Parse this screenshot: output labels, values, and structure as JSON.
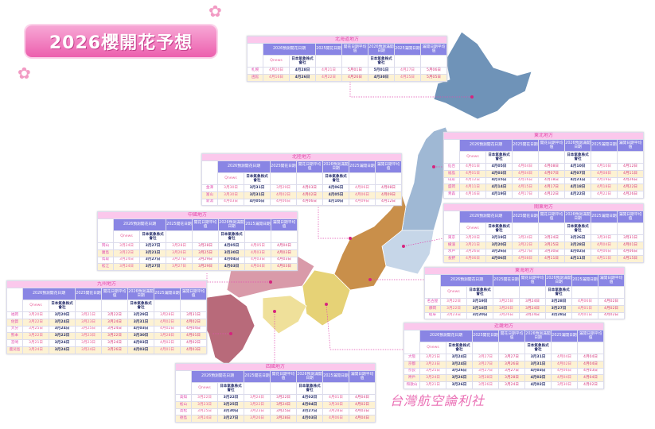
{
  "title": "2026櫻開花予想",
  "watermark": "台灣航空論利社",
  "colors": {
    "header": "#8985e4",
    "title_bar": "#fbc8ec",
    "accent_pink": "#e24aa8",
    "alt_row": "#fdf2d3"
  },
  "headers": [
    "2026預測開花日期",
    "2025開花日期",
    "開花日期平均值",
    "2026預測滿開日期",
    "2025滿開日期",
    "滿開日期平均值"
  ],
  "subheaders": {
    "qnews": "Qnews",
    "jwa": "日本氣象株式會社"
  },
  "regions": [
    {
      "name": "北海道地方",
      "rows": [
        {
          "city": "札幌",
          "v": [
            "4月20日",
            "4月28日",
            "4月21日",
            "5月01日",
            "5月01日",
            "4月27日",
            "5月06日"
          ]
        },
        {
          "city": "函館",
          "v": [
            "4月16日",
            "4月26日",
            "4月22日",
            "4月26日",
            "4月30日",
            "4月25日",
            "5月05日"
          ]
        }
      ]
    },
    {
      "name": "東北地方",
      "rows": [
        {
          "city": "仙台",
          "v": [
            "4月01日",
            "4月05日",
            "4月04日",
            "4月08日",
            "4月10日",
            "4月10日",
            "4月12日"
          ]
        },
        {
          "city": "福島",
          "v": [
            "4月01日",
            "4月03日",
            "4月04日",
            "4月07日",
            "4月07日",
            "4月08日",
            "4月11日"
          ]
        },
        {
          "city": "山形",
          "v": [
            "4月12日",
            "4月15日",
            "4月16日",
            "4月18日",
            "4月21日",
            "4月19日",
            "4月26日"
          ]
        },
        {
          "city": "盛岡",
          "v": [
            "4月11日",
            "4月14日",
            "4月15日",
            "4月17日",
            "4月18日",
            "4月18日",
            "4月22日"
          ]
        },
        {
          "city": "青森",
          "v": [
            "4月16日",
            "4月19日",
            "4月17日",
            "4月22日",
            "4月22日",
            "4月22日",
            "4月26日"
          ]
        }
      ]
    },
    {
      "name": "北陸地方",
      "rows": [
        {
          "city": "金澤",
          "v": [
            "3月30日",
            "3月31日",
            "3月29日",
            "4月03日",
            "4月06日",
            "4月06日",
            "4月08日"
          ]
        },
        {
          "city": "富山",
          "v": [
            "3月30日",
            "3月31日",
            "4月02日",
            "4月02日",
            "4月05日",
            "4月06日",
            "4月09日"
          ]
        },
        {
          "city": "新潟",
          "v": [
            "4月03日",
            "4月05日",
            "4月06日",
            "4月06日",
            "4月10日",
            "4月09日",
            "4月12日"
          ]
        }
      ]
    },
    {
      "name": "關東地方",
      "rows": [
        {
          "city": "東京",
          "v": [
            "3月20日",
            "3月19日",
            "3月24日",
            "3月24日",
            "3月26日",
            "3月30日",
            "3月31日"
          ]
        },
        {
          "city": "橫濱",
          "v": [
            "3月21日",
            "3月20日",
            "3月22日",
            "3月25日",
            "3月28日",
            "4月04日",
            "4月01日"
          ]
        },
        {
          "city": "水戶",
          "v": [
            "3月26日",
            "3月26日",
            "3月27日",
            "3月30日",
            "4月02日",
            "4月06日",
            "4月06日"
          ]
        },
        {
          "city": "長野",
          "v": [
            "4月06日",
            "4月06日",
            "4月08日",
            "4月11日",
            "4月11日",
            "4月11日",
            "4月15日"
          ]
        }
      ]
    },
    {
      "name": "中國地方",
      "rows": [
        {
          "city": "岡山",
          "v": [
            "3月24日",
            "3月27日",
            "3月28日",
            "3月28日",
            "4月05日",
            "4月05日",
            "4月04日"
          ]
        },
        {
          "city": "廣島",
          "v": [
            "3月22日",
            "3月21日",
            "3月26日",
            "3月25日",
            "3月30日",
            "4月03日",
            "4月03日"
          ]
        },
        {
          "city": "鳥取",
          "v": [
            "3月24日",
            "3月27日",
            "3月27日",
            "3月29日",
            "4月04日",
            "4月03日",
            "4月03日"
          ]
        },
        {
          "city": "松江",
          "v": [
            "3月24日",
            "3月27日",
            "3月27日",
            "3月29日",
            "4月03日",
            "4月04日",
            "4月03日"
          ]
        }
      ]
    },
    {
      "name": "東海地方",
      "rows": [
        {
          "city": "名古屋",
          "v": [
            "3月22日",
            "3月19日",
            "3月25日",
            "3月24日",
            "3月28日",
            "4月06日",
            "4月02日"
          ]
        },
        {
          "city": "靜岡",
          "v": [
            "3月22日",
            "3月18日",
            "3月26日",
            "3月24日",
            "3月27日",
            "4月01日",
            "4月02日"
          ]
        },
        {
          "city": "岐阜",
          "v": [
            "3月23日",
            "3月20日",
            "3月26日",
            "3月24日",
            "3月28日",
            "4月01日",
            "4月02日"
          ]
        }
      ]
    },
    {
      "name": "九州地方",
      "rows": [
        {
          "city": "福岡",
          "v": [
            "3月20日",
            "3月20日",
            "3月21日",
            "3月22日",
            "3月29日",
            "3月28日",
            "3月31日"
          ]
        },
        {
          "city": "佐賀",
          "v": [
            "3月22日",
            "3月24日",
            "3月23日",
            "3月24日",
            "3月31日",
            "4月02日",
            "4月02日"
          ]
        },
        {
          "city": "大分",
          "v": [
            "3月25日",
            "3月24日",
            "3月25日",
            "3月24日",
            "4月03日",
            "4月02日",
            "4月04日"
          ]
        },
        {
          "city": "熊本",
          "v": [
            "3月22日",
            "3月22日",
            "3月23日",
            "3月22日",
            "3月30日",
            "3月28日",
            "4月01日"
          ]
        },
        {
          "city": "宮崎",
          "v": [
            "3月21日",
            "3月24日",
            "3月23日",
            "3月24日",
            "4月03日",
            "4月02日",
            "4月02日"
          ]
        },
        {
          "city": "鹿兒島",
          "v": [
            "3月24日",
            "3月24日",
            "3月24日",
            "3月26日",
            "4月03日",
            "4月01日",
            "4月03日"
          ]
        }
      ]
    },
    {
      "name": "近畿地方",
      "rows": [
        {
          "city": "大阪",
          "v": [
            "3月25日",
            "3月24日",
            "3月27日",
            "3月27日",
            "3月31日",
            "4月04日",
            "4月04日"
          ]
        },
        {
          "city": "京都",
          "v": [
            "3月23日",
            "3月24日",
            "3月27日",
            "3月26日",
            "3月31日",
            "4月02日",
            "4月04日"
          ]
        },
        {
          "city": "奈良",
          "v": [
            "3月25日",
            "3月26日",
            "3月27日",
            "3月27日",
            "4月03日",
            "4月06日",
            "4月03日"
          ]
        },
        {
          "city": "神戶",
          "v": [
            "3月24日",
            "3月26日",
            "3月28日",
            "3月28日",
            "4月02日",
            "4月04日",
            "4月04日"
          ]
        },
        {
          "city": "和歌山",
          "v": [
            "3月21日",
            "3月26日",
            "3月26日",
            "3月24日",
            "4月02日",
            "3月30日",
            "4月02日"
          ]
        }
      ]
    },
    {
      "name": "四國地方",
      "rows": [
        {
          "city": "高知",
          "v": [
            "3月22日",
            "3月22日",
            "3月24日",
            "3月22日",
            "4月02日",
            "4月01日",
            "4月04日"
          ]
        },
        {
          "city": "松山",
          "v": [
            "3月23日",
            "3月25日",
            "3月22日",
            "3月24日",
            "4月04日",
            "3月30日",
            "4月02日"
          ]
        },
        {
          "city": "高松",
          "v": [
            "3月25日",
            "3月30日",
            "3月23日",
            "3月25日",
            "3月27日",
            "3月28日",
            "4月03日"
          ]
        },
        {
          "city": "德島",
          "v": [
            "3月24日",
            "3月27日",
            "3月26日",
            "3月28日",
            "4月03日",
            "4月06日",
            "4月04日"
          ]
        }
      ]
    }
  ]
}
